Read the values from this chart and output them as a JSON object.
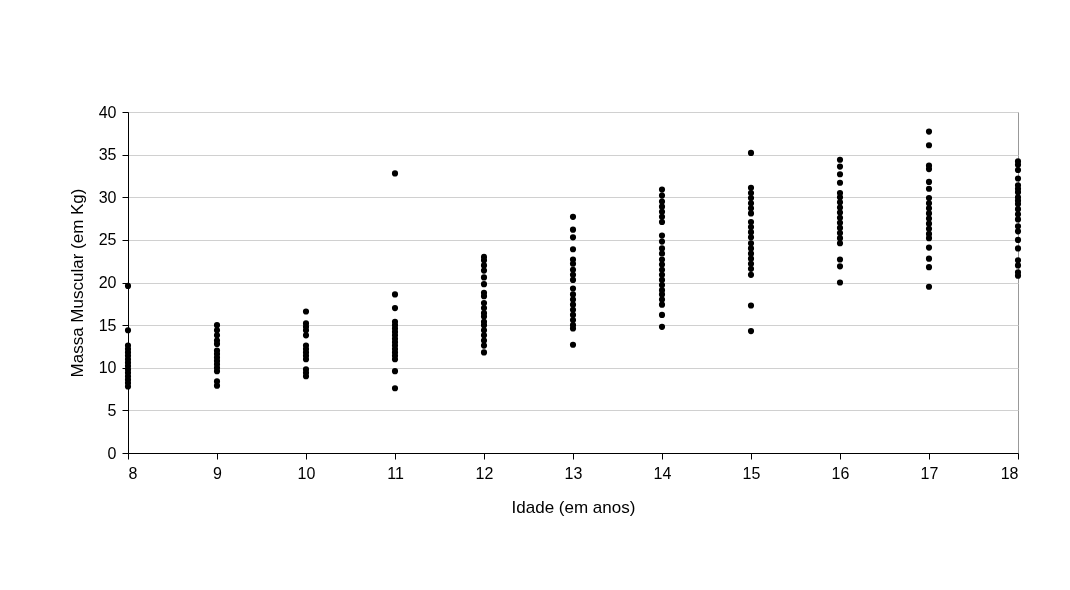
{
  "chart_data": {
    "type": "scatter",
    "xlabel": "Idade (em anos)",
    "ylabel": "Massa Muscular (em Kg)",
    "xlim": [
      8,
      18
    ],
    "xticks": [
      8,
      9,
      10,
      11,
      12,
      13,
      14,
      15,
      16,
      17,
      18
    ],
    "ylim": [
      0,
      40
    ],
    "yticks": [
      0,
      5,
      10,
      15,
      20,
      25,
      30,
      35,
      40
    ],
    "grid": "y",
    "marker": "circle",
    "series": [
      {
        "color": "#000000",
        "x": [
          8,
          8,
          8,
          8,
          8,
          8,
          8,
          8,
          8,
          8,
          8,
          8,
          8,
          8,
          8,
          9,
          9,
          9,
          9,
          9,
          9,
          9,
          9,
          9,
          9,
          9,
          9,
          9,
          9,
          10,
          10,
          10,
          10,
          10,
          10,
          10,
          10,
          10,
          10,
          10,
          10,
          10,
          11,
          11,
          11,
          11,
          11,
          11,
          11,
          11,
          11,
          11,
          11,
          11,
          11,
          11,
          11,
          11,
          11,
          12,
          12,
          12,
          12,
          12,
          12,
          12,
          12,
          12,
          12,
          12,
          12,
          12,
          12,
          12,
          12,
          12,
          12,
          12,
          13,
          13,
          13,
          13,
          13,
          13,
          13,
          13,
          13,
          13,
          13,
          13,
          13,
          13,
          13,
          13,
          13,
          13,
          13,
          14,
          14,
          14,
          14,
          14,
          14,
          14,
          14,
          14,
          14,
          14,
          14,
          14,
          14,
          14,
          14,
          14,
          14,
          14,
          14,
          14,
          14,
          14,
          15,
          15,
          15,
          15,
          15,
          15,
          15,
          15,
          15,
          15,
          15,
          15,
          15,
          15,
          15,
          15,
          15,
          15,
          15,
          15,
          16,
          16,
          16,
          16,
          16,
          16,
          16,
          16,
          16,
          16,
          16,
          16,
          16,
          16,
          16,
          16,
          16,
          16,
          17,
          17,
          17,
          17,
          17,
          17,
          17,
          17,
          17,
          17,
          17,
          17,
          17,
          17,
          17,
          17,
          17,
          17,
          17,
          18,
          18,
          18,
          18,
          18,
          18,
          18,
          18,
          18,
          18,
          18,
          18,
          18,
          18,
          18,
          18,
          18,
          18,
          18,
          18,
          18
        ],
        "values": [
          19.6,
          14.4,
          12.6,
          12.2,
          11.8,
          11.4,
          11,
          10.6,
          10.2,
          9.8,
          9.4,
          9,
          8.6,
          8.2,
          7.8,
          15,
          14.4,
          13.8,
          13.2,
          12.8,
          12,
          11.6,
          11.2,
          10.8,
          10.4,
          10,
          9.6,
          8.4,
          7.9,
          16.6,
          15.2,
          14.8,
          14.4,
          13.8,
          12.6,
          12.2,
          11.8,
          11.4,
          11,
          9.8,
          9.4,
          9,
          32.8,
          18.6,
          17,
          15.4,
          15,
          14.6,
          14.2,
          13.8,
          13.4,
          13,
          12.6,
          12.2,
          11.8,
          11.4,
          11,
          9.6,
          7.6,
          23,
          22.6,
          22,
          21.4,
          20.6,
          19.8,
          18.8,
          18.4,
          17.6,
          17,
          16.4,
          16,
          15.4,
          15,
          14.4,
          13.8,
          13.2,
          12.6,
          11.8,
          27.7,
          26.2,
          25.3,
          23.9,
          22.7,
          22.2,
          21.5,
          20.9,
          20.3,
          19.3,
          18.6,
          18,
          17.4,
          16.8,
          16.2,
          15.6,
          15,
          14.6,
          12.7,
          30.9,
          30.2,
          29.5,
          28.9,
          28.3,
          27.7,
          27.1,
          25.5,
          24.8,
          24,
          23.4,
          22.7,
          22.1,
          21.5,
          20.9,
          20.3,
          19.7,
          19.1,
          18.6,
          18,
          17.4,
          16.2,
          14.8,
          35.2,
          31.1,
          30.5,
          29.9,
          29.3,
          28.7,
          28.1,
          27.1,
          26.5,
          25.9,
          25.3,
          24.6,
          24,
          23.4,
          22.8,
          22.2,
          21.6,
          20.9,
          17.3,
          14.3,
          34.4,
          33.6,
          32.7,
          31.7,
          30.5,
          30,
          29.4,
          28.8,
          28.2,
          27.6,
          27,
          26.4,
          25.8,
          25.2,
          24.6,
          22.7,
          21.9,
          20,
          37.7,
          36.1,
          33.7,
          33.3,
          31.8,
          31,
          29.9,
          29.3,
          28.7,
          28.1,
          27.5,
          26.9,
          26.3,
          25.7,
          25.2,
          24.1,
          22.8,
          21.8,
          19.5,
          34.2,
          33.8,
          33.2,
          32.2,
          31.4,
          31,
          30.6,
          30,
          29.6,
          29.2,
          28.6,
          28,
          27.4,
          26.6,
          26,
          25,
          24,
          22.6,
          22,
          21.2,
          20.8
        ]
      }
    ]
  }
}
